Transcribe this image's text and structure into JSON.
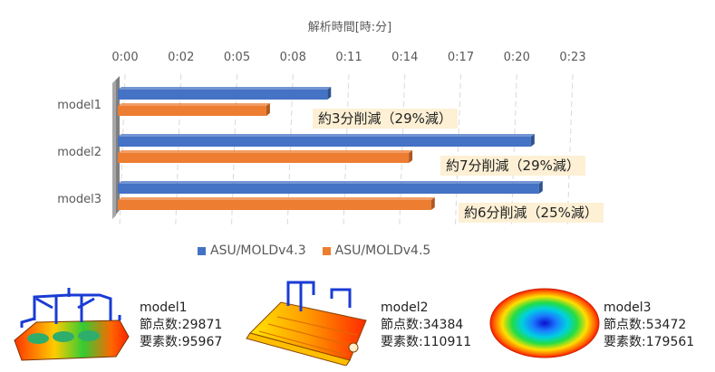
{
  "chart_data": {
    "type": "bar",
    "orientation": "horizontal",
    "title": "解析時間[時:分]",
    "categories": [
      "model1",
      "model2",
      "model3"
    ],
    "tick_labels": [
      "0:00",
      "0:02",
      "0:05",
      "0:08",
      "0:11",
      "0:14",
      "0:17",
      "0:20",
      "0:23"
    ],
    "xlim_minutes": [
      0,
      23.8
    ],
    "grid": true,
    "legend_position": "bottom",
    "series": [
      {
        "name": "ASU/MOLDv4.3",
        "color": "#4472c4",
        "values_minutes": [
          10.3,
          20.3,
          20.7
        ]
      },
      {
        "name": "ASU/MOLDv4.5",
        "color": "#ed7d31",
        "values_minutes": [
          7.3,
          14.3,
          15.4
        ]
      }
    ],
    "annotations": [
      "約3分削減（29%減）",
      "約7分削減（29%減）",
      "約6分削減（25%減）"
    ]
  },
  "models": [
    {
      "name": "model1",
      "nodes": "節点数:29871",
      "elements": "要素数:95967"
    },
    {
      "name": "model2",
      "nodes": "節点数:34384",
      "elements": "要素数:110911"
    },
    {
      "name": "model3",
      "nodes": "節点数:53472",
      "elements": "要素数:179561"
    }
  ]
}
